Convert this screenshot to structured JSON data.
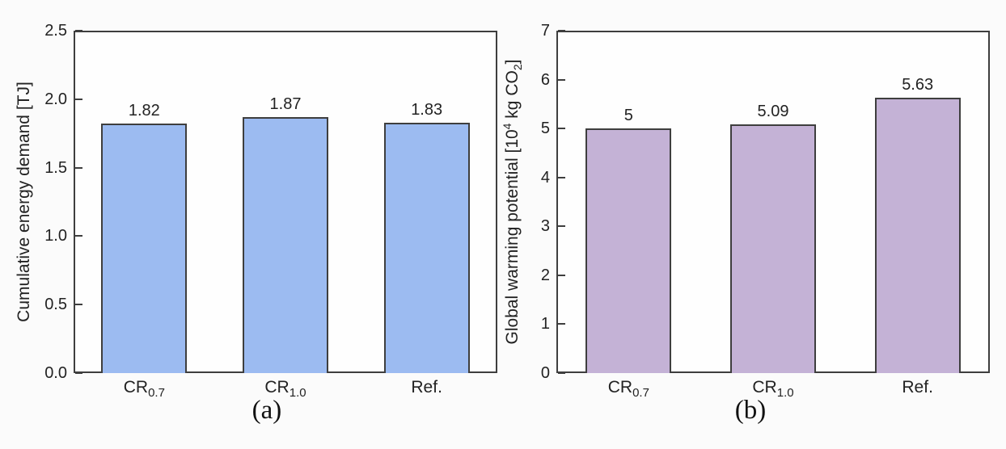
{
  "figure": {
    "background_color": "#fbfbfb",
    "axis_color": "#3e3e3e",
    "text_color": "#222222"
  },
  "chart_data": [
    {
      "type": "bar",
      "caption": "(a)",
      "ylabel_text": "Cumulative energy demand [TJ]",
      "ylabel_segments": [
        {
          "text": "Cumulative energy demand [TJ]"
        }
      ],
      "categories": [
        {
          "text": "CR",
          "sub": "0.7"
        },
        {
          "text": "CR",
          "sub": "1.0"
        },
        {
          "text": "Ref."
        }
      ],
      "values": [
        1.82,
        1.87,
        1.83
      ],
      "value_labels": [
        "1.82",
        "1.87",
        "1.83"
      ],
      "ylim": [
        0,
        2.5
      ],
      "yticks": [
        {
          "v": 0.0,
          "label": "0.0"
        },
        {
          "v": 0.5,
          "label": "0.5"
        },
        {
          "v": 1.0,
          "label": "1.0"
        },
        {
          "v": 1.5,
          "label": "1.5"
        },
        {
          "v": 2.0,
          "label": "2.0"
        },
        {
          "v": 2.5,
          "label": "2.5"
        }
      ],
      "grid": "off",
      "legend": "none",
      "bar_fill": "#9cbbf1",
      "bar_border": "#3e3e3e"
    },
    {
      "type": "bar",
      "caption": "(b)",
      "ylabel_text": "Global warming potential [10^4 kg CO2]",
      "ylabel_segments": [
        {
          "text": "Global warming potential [10"
        },
        {
          "text": "4",
          "script": "sup"
        },
        {
          "text": " kg CO"
        },
        {
          "text": "2",
          "script": "sub"
        },
        {
          "text": "]"
        }
      ],
      "categories": [
        {
          "text": "CR",
          "sub": "0.7"
        },
        {
          "text": "CR",
          "sub": "1.0"
        },
        {
          "text": "Ref."
        }
      ],
      "values": [
        5,
        5.09,
        5.63
      ],
      "value_labels": [
        "5",
        "5.09",
        "5.63"
      ],
      "ylim": [
        0,
        7
      ],
      "yticks": [
        {
          "v": 0,
          "label": "0"
        },
        {
          "v": 1,
          "label": "1"
        },
        {
          "v": 2,
          "label": "2"
        },
        {
          "v": 3,
          "label": "3"
        },
        {
          "v": 4,
          "label": "4"
        },
        {
          "v": 5,
          "label": "5"
        },
        {
          "v": 6,
          "label": "6"
        },
        {
          "v": 7,
          "label": "7"
        }
      ],
      "grid": "off",
      "legend": "none",
      "bar_fill": "#c4b2d6",
      "bar_border": "#3e3e3e"
    }
  ]
}
